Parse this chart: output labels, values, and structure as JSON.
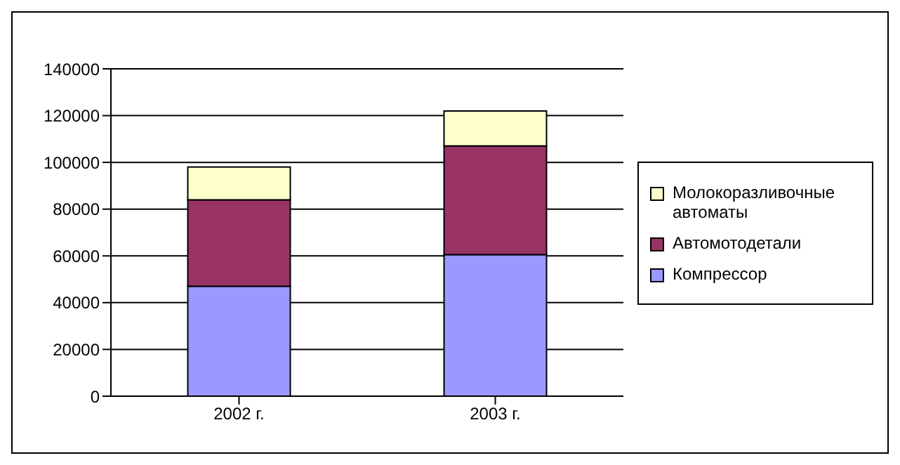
{
  "chart_data": {
    "type": "bar",
    "stacked": true,
    "categories": [
      "2002 г.",
      "2003 г."
    ],
    "series": [
      {
        "name": "Компрессор",
        "color": "#9999ff",
        "values": [
          47000,
          60500
        ]
      },
      {
        "name": "Автомотодетали",
        "color": "#993366",
        "values": [
          37000,
          46500
        ]
      },
      {
        "name": "Молокоразливочные автоматы",
        "color": "#ffffcc",
        "values": [
          14000,
          15000
        ]
      }
    ],
    "ylim": [
      0,
      140000
    ],
    "yticks": [
      0,
      20000,
      40000,
      60000,
      80000,
      100000,
      120000,
      140000
    ],
    "grid": "y",
    "legend": "right"
  }
}
